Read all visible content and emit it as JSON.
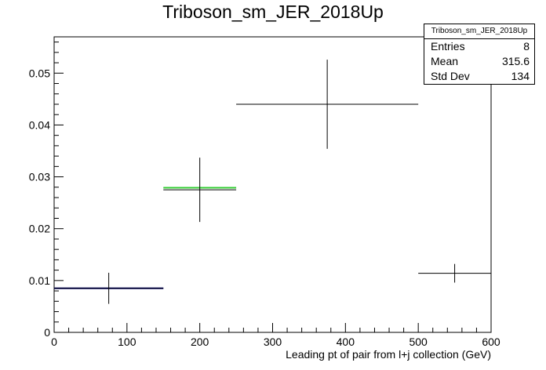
{
  "chart_data": {
    "type": "scatter",
    "title": "Triboson_sm_JER_2018Up",
    "xlabel": "Leading pt of pair from l+j collection (GeV)",
    "ylabel": "",
    "xlim": [
      0,
      600
    ],
    "ylim": [
      0,
      0.057
    ],
    "x_ticks": [
      "0",
      "100",
      "200",
      "300",
      "400",
      "500",
      "600"
    ],
    "y_ticks": [
      "0",
      "0.01",
      "0.02",
      "0.03",
      "0.04",
      "0.05"
    ],
    "grid": false,
    "bins": [
      {
        "x": 75,
        "x_low": 0,
        "x_high": 150,
        "y": 0.0085,
        "y_err": 0.003
      },
      {
        "x": 200,
        "x_low": 150,
        "x_high": 250,
        "y": 0.0275,
        "y_err": 0.0062
      },
      {
        "x": 375,
        "x_low": 250,
        "x_high": 500,
        "y": 0.044,
        "y_err": 0.0086
      },
      {
        "x": 550,
        "x_low": 500,
        "x_high": 600,
        "y": 0.0114,
        "y_err": 0.0018
      }
    ],
    "overlay_segments": [
      {
        "x_low": 0,
        "x_high": 150,
        "y": 0.0085,
        "color": "#000080"
      },
      {
        "x_low": 150,
        "x_high": 250,
        "y": 0.0279,
        "color": "#33cc33"
      }
    ],
    "stats": {
      "title": "Triboson_sm_JER_2018Up",
      "entries_label": "Entries",
      "entries": "8",
      "mean_label": "Mean",
      "mean": "315.6",
      "stddev_label": "Std Dev",
      "stddev": "134"
    }
  }
}
